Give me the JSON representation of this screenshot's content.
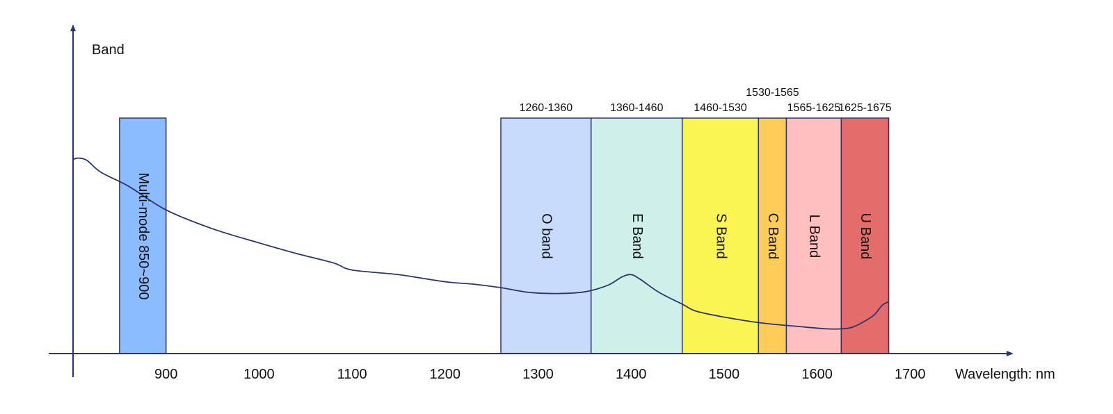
{
  "chart_data": {
    "type": "area",
    "ylabel": "Band",
    "xlabel": "Wavelength: nm",
    "xlim": [
      800,
      1720
    ],
    "x_ticks": [
      "900",
      "1000",
      "1100",
      "1200",
      "1300",
      "1400",
      "1500",
      "1600",
      "1700"
    ],
    "bands": [
      {
        "name": "Multi-mode 850~900",
        "range_label": "",
        "start": 850,
        "end": 900,
        "color": "#8bbcff"
      },
      {
        "name": "O band",
        "range_label": "1260-1360",
        "start": 1260,
        "end": 1357,
        "color": "#c8dbfd"
      },
      {
        "name": "E Band",
        "range_label": "1360-1460",
        "start": 1357,
        "end": 1455,
        "color": "#cff0e8"
      },
      {
        "name": "S Band",
        "range_label": "1460-1530",
        "start": 1455,
        "end": 1537,
        "color": "#faf552"
      },
      {
        "name": "C Band",
        "range_label": "1530-1565",
        "start": 1537,
        "end": 1567,
        "color": "#ffcd57"
      },
      {
        "name": "L Band",
        "range_label": "1565-1625",
        "start": 1567,
        "end": 1626,
        "color": "#ffbfbf"
      },
      {
        "name": "U Band",
        "range_label": "1625-1675",
        "start": 1626,
        "end": 1677,
        "color": "#e46c6b"
      }
    ],
    "attenuation_curve": {
      "x": [
        800,
        806,
        815,
        830,
        860,
        900,
        950,
        1000,
        1040,
        1080,
        1100,
        1150,
        1200,
        1230,
        1260,
        1290,
        1320,
        1350,
        1375,
        1390,
        1400,
        1410,
        1430,
        1455,
        1470,
        1500,
        1540,
        1580,
        1610,
        1626,
        1640,
        1660,
        1670,
        1677
      ],
      "y": [
        0.825,
        0.83,
        0.82,
        0.77,
        0.71,
        0.61,
        0.53,
        0.47,
        0.425,
        0.385,
        0.355,
        0.335,
        0.305,
        0.295,
        0.28,
        0.26,
        0.255,
        0.262,
        0.29,
        0.325,
        0.335,
        0.315,
        0.26,
        0.21,
        0.18,
        0.155,
        0.13,
        0.115,
        0.105,
        0.105,
        0.115,
        0.16,
        0.205,
        0.22
      ]
    },
    "grid": false,
    "legend": "none"
  }
}
